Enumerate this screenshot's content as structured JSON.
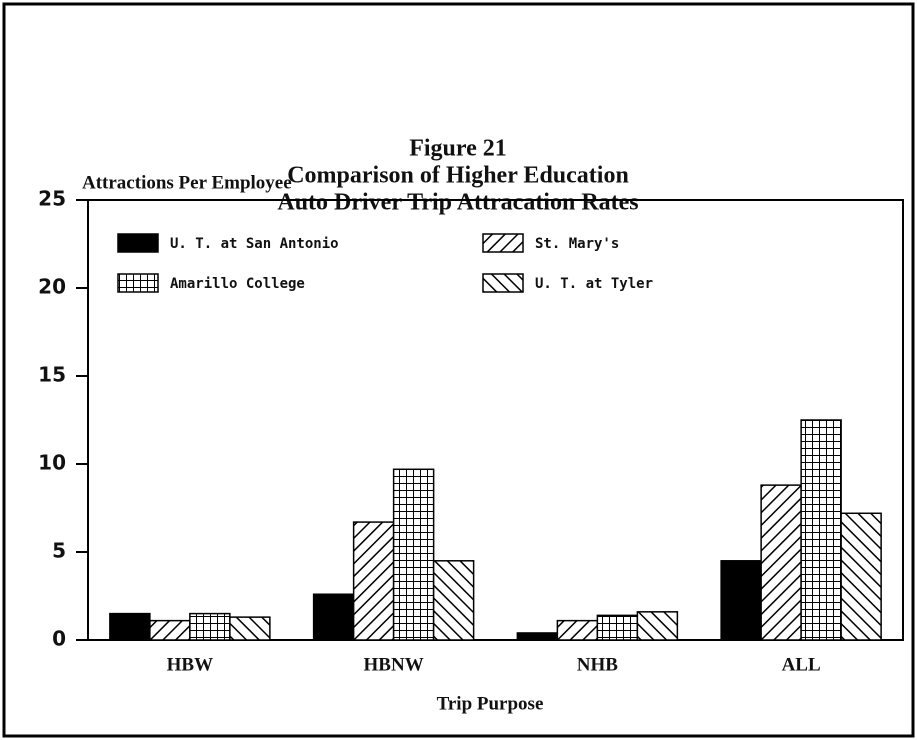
{
  "chart_data": {
    "type": "bar",
    "title": [
      "Figure 21",
      "Comparison of Higher Education",
      "Auto Driver Trip Attracation Rates"
    ],
    "y_label": "Attractions Per Employee",
    "x_label": "Trip Purpose",
    "categories": [
      "HBW",
      "HBNW",
      "NHB",
      "ALL"
    ],
    "series": [
      {
        "name": "U. T. at San Antonio",
        "color": "#000000",
        "pattern": "solid",
        "values": [
          1.5,
          2.6,
          0.4,
          4.5
        ]
      },
      {
        "name": "St. Mary's",
        "color": "#000000",
        "pattern": "forward-diagonal",
        "values": [
          1.1,
          6.7,
          1.1,
          8.8
        ]
      },
      {
        "name": "Amarillo College",
        "color": "#000000",
        "pattern": "grid",
        "values": [
          1.5,
          9.7,
          1.4,
          12.5
        ]
      },
      {
        "name": "U. T. at Tyler",
        "color": "#000000",
        "pattern": "back-diagonal",
        "values": [
          1.3,
          4.5,
          1.6,
          7.2
        ]
      }
    ],
    "ylim": [
      0,
      25
    ],
    "yticks": [
      0,
      5,
      10,
      15,
      20,
      25
    ],
    "grid": false,
    "legend": "top-left"
  }
}
